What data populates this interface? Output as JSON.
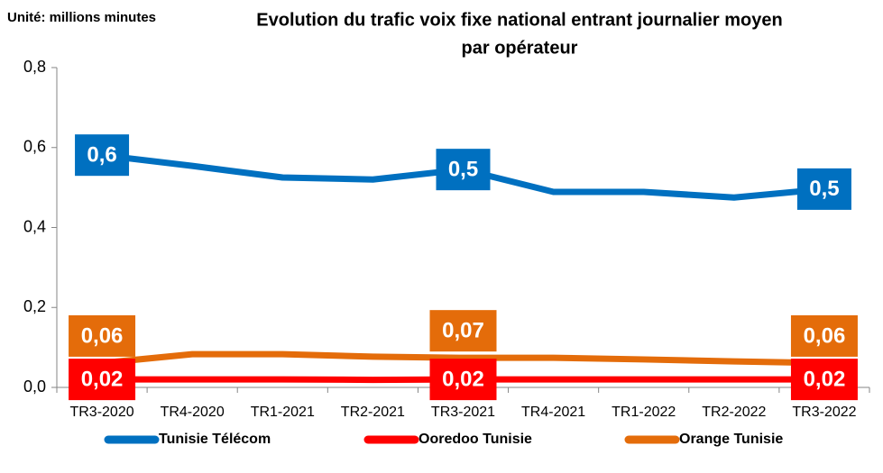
{
  "chart_data": {
    "type": "line",
    "title": [
      "Evolution du trafic voix fixe national entrant journalier moyen",
      "par opérateur"
    ],
    "unit_label": "Unité: millions minutes",
    "categories": [
      "TR3-2020",
      "TR4-2020",
      "TR1-2021",
      "TR2-2021",
      "TR3-2021",
      "TR4-2021",
      "TR1-2022",
      "TR2-2022",
      "TR3-2022"
    ],
    "ylim": [
      0,
      0.8
    ],
    "yticks": [
      {
        "value": 0,
        "label": "0,0"
      },
      {
        "value": 0.2,
        "label": "0,2"
      },
      {
        "value": 0.4,
        "label": "0,4"
      },
      {
        "value": 0.6,
        "label": "0,6"
      },
      {
        "value": 0.8,
        "label": "0,8"
      }
    ],
    "grid": false,
    "legend": "bottom",
    "series": [
      {
        "name": "Tunisie Télécom",
        "color": "#0070c0",
        "values": [
          0.581,
          0.554,
          0.525,
          0.52,
          0.545,
          0.489,
          0.489,
          0.475,
          0.496
        ],
        "value_labels": [
          "0,6",
          null,
          null,
          null,
          "0,5",
          null,
          null,
          null,
          "0,5"
        ]
      },
      {
        "name": "Ooredoo Tunisie",
        "color": "#ff0000",
        "values": [
          0.02,
          0.02,
          0.02,
          0.019,
          0.02,
          0.02,
          0.02,
          0.02,
          0.02
        ],
        "value_labels": [
          "0,02",
          null,
          null,
          null,
          "0,02",
          null,
          null,
          null,
          "0,02"
        ]
      },
      {
        "name": "Orange Tunisie",
        "color": "#e46c0a",
        "values": [
          0.061,
          0.083,
          0.083,
          0.077,
          0.074,
          0.074,
          0.07,
          0.065,
          0.061
        ],
        "value_labels": [
          "0,06",
          null,
          null,
          null,
          "0,07",
          null,
          null,
          null,
          "0,06"
        ]
      }
    ]
  }
}
